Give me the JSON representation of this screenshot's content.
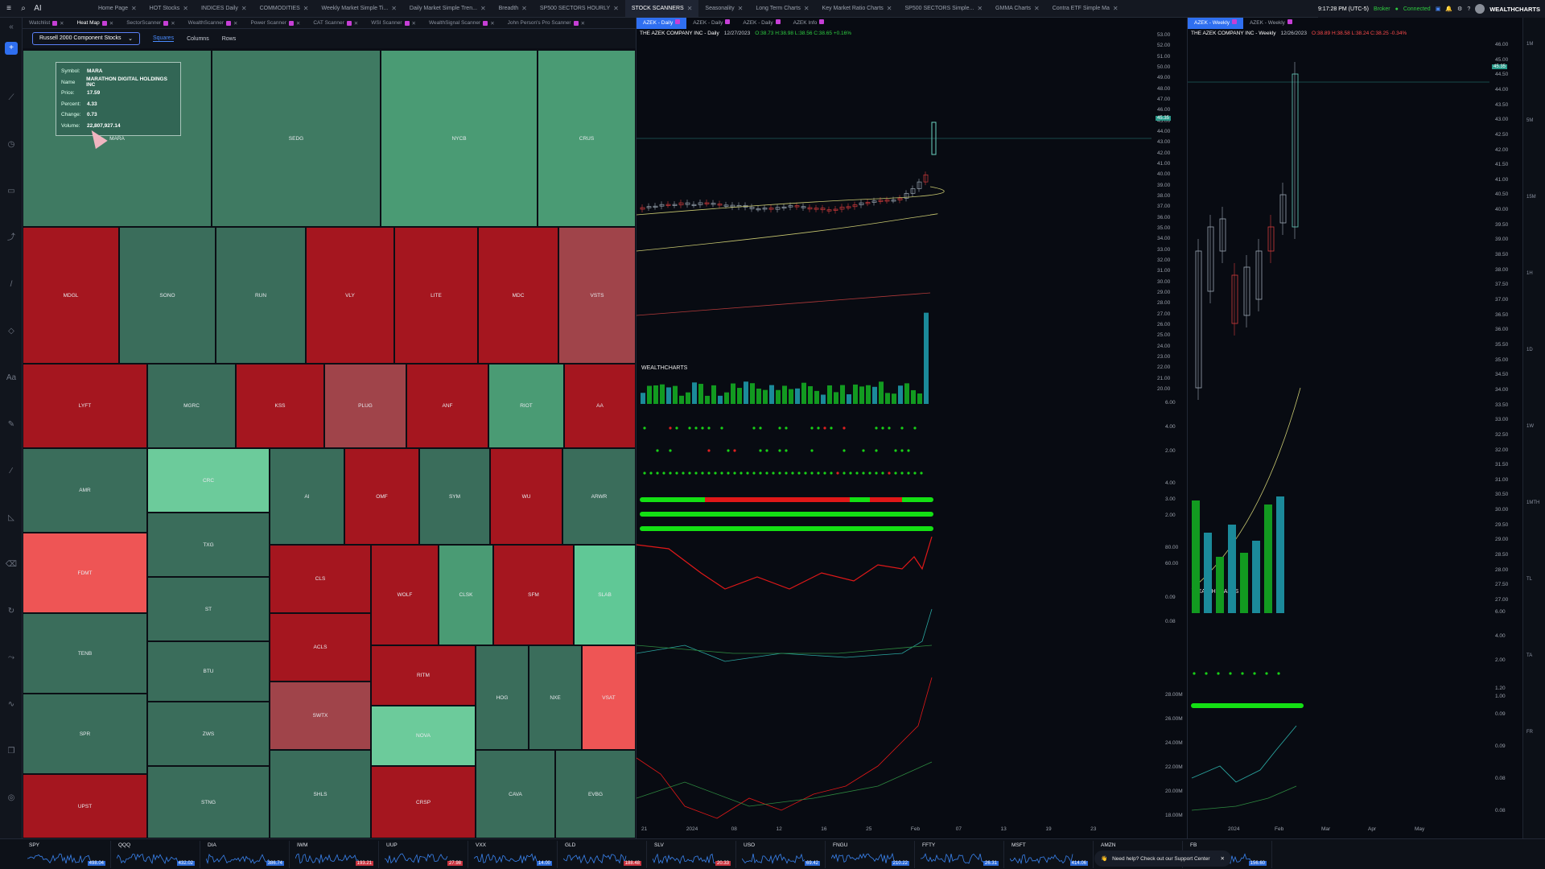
{
  "topbar": {
    "app_label": "AI",
    "tabs": [
      "Home Page",
      "HOT Stocks",
      "INDICES Daily",
      "COMMODITIES",
      "Weekly Market Simple Ti...",
      "Daily Market Simple Tren...",
      "Breadth",
      "SP500 SECTORS HOURLY",
      "STOCK SCANNERS",
      "Seasonality",
      "Long Term Charts",
      "Key Market Ratio Charts",
      "SP500 SECTORS Simple...",
      "GMMA Charts",
      "Contra ETF Simple Ma"
    ],
    "active_tab": "STOCK SCANNERS",
    "time": "9:17:28 PM (UTC-5)",
    "broker": "Broker",
    "connected": "Connected",
    "brand": "WEALTHCHARTS"
  },
  "subtabs": {
    "items": [
      "Watchlist",
      "Heat Map",
      "SectorScanner",
      "WealthScanner",
      "Power Scanner",
      "CAT Scanner",
      "WSI Scanner",
      "WealthSignal Scanner",
      "John Person's Pro Scanner"
    ],
    "active": "Heat Map"
  },
  "heatmap_bar": {
    "dropdown": "Russell 2000 Component Stocks",
    "modes": [
      "Squares",
      "Columns",
      "Rows"
    ],
    "active_mode": "Squares"
  },
  "tooltip": {
    "symbol_label": "Symbol:",
    "symbol": "MARA",
    "name_label": "Name",
    "name": "MARATHON DIGITAL HOLDINGS INC",
    "price_label": "Price:",
    "price": "17.59",
    "percent_label": "Percent:",
    "percent": "4.33",
    "change_label": "Change:",
    "change": "0.73",
    "volume_label": "Volume:",
    "volume": "22,807,927.14"
  },
  "heatmap_cells": [
    {
      "sym": "MARA",
      "c": "#3f7a62"
    },
    {
      "sym": "SEDG",
      "c": "#3f7a62"
    },
    {
      "sym": "NYCB",
      "c": "#4a9b74"
    },
    {
      "sym": "CRUS",
      "c": "#4a9b74"
    },
    {
      "sym": "MDGL",
      "c": "#a5161f"
    },
    {
      "sym": "SONO",
      "c": "#3a6d5b"
    },
    {
      "sym": "RUN",
      "c": "#3a6d5b"
    },
    {
      "sym": "VLY",
      "c": "#a5161f"
    },
    {
      "sym": "LITE",
      "c": "#a5161f"
    },
    {
      "sym": "MDC",
      "c": "#a5161f"
    },
    {
      "sym": "VSTS",
      "c": "#a0444a"
    },
    {
      "sym": "LYFT",
      "c": "#a5161f"
    },
    {
      "sym": "MGRC",
      "c": "#3a6d5b"
    },
    {
      "sym": "KSS",
      "c": "#a5161f"
    },
    {
      "sym": "PLUG",
      "c": "#a0444a"
    },
    {
      "sym": "ANF",
      "c": "#a5161f"
    },
    {
      "sym": "RIOT",
      "c": "#4a9b74"
    },
    {
      "sym": "AA",
      "c": "#a5161f"
    },
    {
      "sym": "AMR",
      "c": "#3a6d5b"
    },
    {
      "sym": "CRC",
      "c": "#6ccb9b"
    },
    {
      "sym": "AI",
      "c": "#3a6d5b"
    },
    {
      "sym": "OMF",
      "c": "#a5161f"
    },
    {
      "sym": "SYM",
      "c": "#3a6d5b"
    },
    {
      "sym": "WU",
      "c": "#a5161f"
    },
    {
      "sym": "ARWR",
      "c": "#3a6d5b"
    },
    {
      "sym": "FDMT",
      "c": "#ee5555"
    },
    {
      "sym": "TXG",
      "c": "#3a6d5b"
    },
    {
      "sym": "CLS",
      "c": "#a5161f"
    },
    {
      "sym": "WOLF",
      "c": "#a5161f"
    },
    {
      "sym": "CLSK",
      "c": "#4a9b74"
    },
    {
      "sym": "SFM",
      "c": "#a5161f"
    },
    {
      "sym": "SLAB",
      "c": "#60c896"
    },
    {
      "sym": "ST",
      "c": "#3a6d5b"
    },
    {
      "sym": "TENB",
      "c": "#3a6d5b"
    },
    {
      "sym": "ACLS",
      "c": "#a5161f"
    },
    {
      "sym": "BTU",
      "c": "#3a6d5b"
    },
    {
      "sym": "RITM",
      "c": "#a5161f"
    },
    {
      "sym": "HOG",
      "c": "#3a6d5b"
    },
    {
      "sym": "NXE",
      "c": "#3a6d5b"
    },
    {
      "sym": "VSAT",
      "c": "#ee5555"
    },
    {
      "sym": "SPR",
      "c": "#3a6d5b"
    },
    {
      "sym": "SWTX",
      "c": "#a0444a"
    },
    {
      "sym": "ZWS",
      "c": "#3a6d5b"
    },
    {
      "sym": "NOVA",
      "c": "#6ccb9b"
    },
    {
      "sym": "UPST",
      "c": "#a5161f"
    },
    {
      "sym": "STNG",
      "c": "#3a6d5b"
    },
    {
      "sym": "SHLS",
      "c": "#3a6d5b"
    },
    {
      "sym": "CRSP",
      "c": "#a5161f"
    },
    {
      "sym": "CAVA",
      "c": "#3a6d5b"
    },
    {
      "sym": "EVBG",
      "c": "#3a6d5b"
    }
  ],
  "daily_chart": {
    "tabs": [
      "AZEK - Daily",
      "AZEK - Daily",
      "AZEK - Daily",
      "AZEK Info"
    ],
    "title": "THE AZEK COMPANY INC - Daily",
    "date": "12/27/2023",
    "ohlc": "O:38.73 H:38.98 L:38.56 C:38.65 +0.16%",
    "price_axis": [
      "53.00",
      "52.00",
      "51.00",
      "50.00",
      "49.00",
      "48.00",
      "47.00",
      "46.00",
      "45.00",
      "44.00",
      "43.00",
      "42.00",
      "41.00",
      "40.00",
      "39.00",
      "38.00",
      "37.00",
      "36.00",
      "35.00",
      "34.00",
      "33.00",
      "32.00",
      "31.00",
      "30.00",
      "29.00",
      "28.00",
      "27.00",
      "26.00",
      "25.00",
      "24.00",
      "23.00",
      "22.00",
      "21.00",
      "20.00"
    ],
    "price_tag": "45.35",
    "x_axis": [
      "21",
      "2024",
      "08",
      "12",
      "16",
      "25",
      "Feb",
      "07",
      "13",
      "19",
      "23"
    ],
    "ind_axis_1": [
      "6.00",
      "4.00",
      "2.00"
    ],
    "ind_axis_2": [
      "4.00",
      "3.00",
      "2.00"
    ],
    "ind_axis_3": [
      "80.00",
      "60.00"
    ],
    "ind_axis_4": [
      "0.09",
      "0.08"
    ],
    "ind_axis_5": [
      "28.00M",
      "26.00M",
      "24.00M",
      "22.00M",
      "20.00M",
      "18.00M"
    ],
    "brand": "WEALTHCHARTS"
  },
  "weekly_chart": {
    "tabs": [
      "AZEK - Weekly",
      "AZEK - Weekly"
    ],
    "title": "THE AZEK COMPANY INC - Weekly",
    "date": "12/26/2023",
    "ohlc": "O:38.89 H:38.58 L:38.24 C:38.25 -0.34%",
    "price_axis": [
      "46.00",
      "45.00",
      "44.50",
      "44.00",
      "43.50",
      "43.00",
      "42.50",
      "42.00",
      "41.50",
      "41.00",
      "40.50",
      "40.00",
      "39.50",
      "39.00",
      "38.50",
      "38.00",
      "37.50",
      "37.00",
      "36.50",
      "36.00",
      "35.50",
      "35.00",
      "34.50",
      "34.00",
      "33.50",
      "33.00",
      "32.50",
      "32.00",
      "31.50",
      "31.00",
      "30.50",
      "30.00",
      "29.50",
      "29.00",
      "28.50",
      "28.00",
      "27.50",
      "27.00"
    ],
    "price_tag": "45.35",
    "x_axis": [
      "2024",
      "Feb",
      "Mar",
      "Apr",
      "May"
    ],
    "ind_axis_1": [
      "6.00",
      "4.00",
      "2.00"
    ],
    "ind_axis_2": [
      "1.20",
      "1.00"
    ],
    "ind_axis_3": [
      "0.09",
      "0.09",
      "0.08",
      "0.08"
    ],
    "brand": "WEALTHCHARTS"
  },
  "right_sidebar": [
    "1M",
    "5M",
    "15M",
    "1H",
    "1D",
    "1W",
    "1MTH",
    "TL",
    "TA",
    "FR"
  ],
  "ticker_strip": [
    {
      "sym": "SPY",
      "price": "498.04",
      "down": false
    },
    {
      "sym": "QQQ",
      "price": "432.02",
      "down": false
    },
    {
      "sym": "DIA",
      "price": "386.74",
      "down": false
    },
    {
      "sym": "IWM",
      "price": "193.21",
      "down": true
    },
    {
      "sym": "UUP",
      "price": "27.98",
      "down": true
    },
    {
      "sym": "VXX",
      "price": "14.00",
      "down": false
    },
    {
      "sym": "GLD",
      "price": "188.48",
      "down": true
    },
    {
      "sym": "SLV",
      "price": "20.33",
      "down": true
    },
    {
      "sym": "USO",
      "price": "69.42",
      "down": false
    },
    {
      "sym": "FNGU",
      "price": "210.22",
      "down": false
    },
    {
      "sym": "FFTY",
      "price": "26.31",
      "down": false
    },
    {
      "sym": "MSFT",
      "price": "414.06",
      "down": false
    },
    {
      "sym": "AMZN",
      "price": "",
      "down": false
    },
    {
      "sym": "FB",
      "price": "156.60",
      "down": false
    }
  ],
  "support_text": "Need help? Check out our Support Center"
}
